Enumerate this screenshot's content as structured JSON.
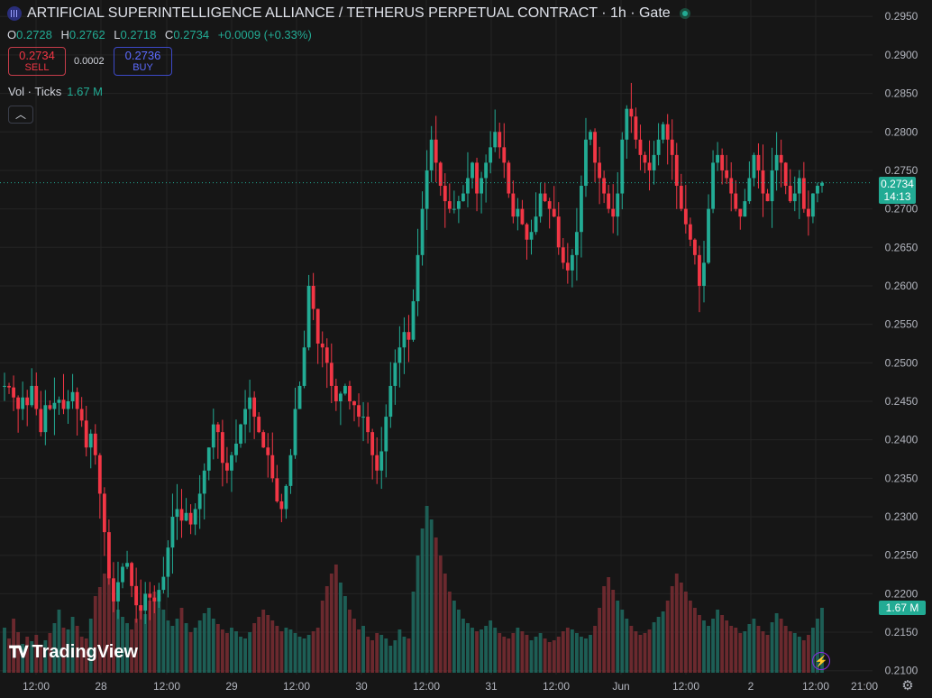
{
  "header": {
    "title": "ARTIFICIAL SUPERINTELLIGENCE ALLIANCE / TETHERUS PERPETUAL CONTRACT · 1h · Gate"
  },
  "ohlc": {
    "o_label": "O",
    "o": "0.2728",
    "h_label": "H",
    "h": "0.2762",
    "l_label": "L",
    "l": "0.2718",
    "c_label": "C",
    "c": "0.2734",
    "change": "+0.0009 (+0.33%)"
  },
  "trade": {
    "sell_price": "0.2734",
    "sell_label": "SELL",
    "spread": "0.0002",
    "buy_price": "0.2736",
    "buy_label": "BUY"
  },
  "volume_legend": {
    "label": "Vol · Ticks",
    "value": "1.67 M"
  },
  "price_tag": {
    "price": "0.2734",
    "countdown": "14:13"
  },
  "volume_tag": "1.67 M",
  "brand": "TradingView",
  "colors": {
    "up": "#22ab94",
    "down": "#f23645",
    "background": "#161616",
    "grid": "#242424",
    "text": "#b2b5be"
  },
  "chart_data": {
    "type": "candlestick",
    "interval": "1h",
    "y_axis": {
      "range": [
        0.2095,
        0.2962
      ],
      "ticks": [
        "0.2950",
        "0.2900",
        "0.2850",
        "0.2800",
        "0.2750",
        "0.2700",
        "0.2650",
        "0.2600",
        "0.2550",
        "0.2500",
        "0.2450",
        "0.2400",
        "0.2350",
        "0.2300",
        "0.2250",
        "0.2200",
        "0.2150",
        "0.2100"
      ]
    },
    "x_axis": {
      "ticks": [
        "12:00",
        "28",
        "12:00",
        "29",
        "12:00",
        "30",
        "12:00",
        "31",
        "12:00",
        "Jun",
        "12:00",
        "2",
        "12:00",
        "21:00"
      ]
    },
    "last_price": 0.2734,
    "series": [
      {
        "name": "Price",
        "key": "start_close",
        "value": 0.247
      },
      {
        "name": "Price",
        "key": "waypoints_close",
        "values": [
          0.247,
          0.2468,
          0.2455,
          0.244,
          0.2455,
          0.2445,
          0.247,
          0.244,
          0.241,
          0.2445,
          0.244,
          0.2448,
          0.2452,
          0.244,
          0.245,
          0.2462,
          0.244,
          0.2425,
          0.239,
          0.2408,
          0.238,
          0.233,
          0.228,
          0.222,
          0.219,
          0.2215,
          0.2235,
          0.224,
          0.221,
          0.2185,
          0.2178,
          0.22,
          0.2195,
          0.219,
          0.2205,
          0.2222,
          0.226,
          0.23,
          0.231,
          0.2295,
          0.2305,
          0.229,
          0.231,
          0.233,
          0.236,
          0.239,
          0.242,
          0.241,
          0.237,
          0.236,
          0.238,
          0.2395,
          0.242,
          0.244,
          0.2455,
          0.243,
          0.241,
          0.239,
          0.238,
          0.235,
          0.232,
          0.231,
          0.234,
          0.238,
          0.244,
          0.247,
          0.252,
          0.26,
          0.257,
          0.2525,
          0.252,
          0.25,
          0.247,
          0.245,
          0.246,
          0.247,
          0.245,
          0.2445,
          0.243,
          0.243,
          0.241,
          0.238,
          0.236,
          0.2385,
          0.243,
          0.247,
          0.25,
          0.252,
          0.254,
          0.253,
          0.258,
          0.264,
          0.27,
          0.275,
          0.279,
          0.276,
          0.273,
          0.271,
          0.27,
          0.27,
          0.271,
          0.272,
          0.274,
          0.276,
          0.272,
          0.274,
          0.276,
          0.278,
          0.28,
          0.278,
          0.276,
          0.272,
          0.269,
          0.27,
          0.268,
          0.266,
          0.267,
          0.269,
          0.272,
          0.271,
          0.27,
          0.269,
          0.265,
          0.263,
          0.262,
          0.264,
          0.267,
          0.273,
          0.279,
          0.28,
          0.276,
          0.274,
          0.272,
          0.27,
          0.269,
          0.272,
          0.279,
          0.283,
          0.282,
          0.279,
          0.277,
          0.276,
          0.275,
          0.277,
          0.279,
          0.281,
          0.279,
          0.277,
          0.273,
          0.27,
          0.268,
          0.266,
          0.264,
          0.26,
          0.263,
          0.27,
          0.276,
          0.277,
          0.275,
          0.274,
          0.272,
          0.27,
          0.269,
          0.271,
          0.274,
          0.277,
          0.275,
          0.272,
          0.271,
          0.275,
          0.277,
          0.276,
          0.273,
          0.271,
          0.272,
          0.274,
          0.27,
          0.269,
          0.272,
          0.273,
          0.2734
        ]
      }
    ],
    "volume_ticks": [
      50,
      38,
      60,
      45,
      32,
      40,
      35,
      42,
      30,
      36,
      44,
      55,
      70,
      50,
      48,
      62,
      52,
      40,
      38,
      60,
      85,
      95,
      110,
      120,
      88,
      70,
      62,
      55,
      48,
      60,
      75,
      65,
      80,
      90,
      85,
      70,
      58,
      52,
      60,
      72,
      55,
      45,
      50,
      58,
      66,
      72,
      60,
      54,
      48,
      44,
      50,
      46,
      40,
      38,
      45,
      55,
      62,
      70,
      64,
      58,
      52,
      46,
      50,
      48,
      44,
      40,
      38,
      42,
      46,
      50,
      80,
      96,
      110,
      120,
      100,
      85,
      70,
      60,
      48,
      52,
      40,
      36,
      44,
      42,
      38,
      30,
      36,
      48,
      40,
      38,
      90,
      130,
      160,
      185,
      170,
      150,
      130,
      110,
      90,
      80,
      70,
      60,
      55,
      50,
      46,
      48,
      52,
      58,
      50,
      44,
      40,
      38,
      44,
      50,
      46,
      42,
      36,
      40,
      44,
      38,
      34,
      36,
      40,
      46,
      50,
      48,
      44,
      40,
      38,
      42,
      52,
      72,
      96,
      106,
      92,
      80,
      70,
      60,
      52,
      46,
      42,
      44,
      48,
      56,
      62,
      68,
      80,
      96,
      110,
      100,
      90,
      80,
      72,
      64,
      58,
      52,
      60,
      70,
      64,
      58,
      52,
      50,
      44,
      46,
      54,
      60,
      52,
      46,
      42,
      56,
      66,
      60,
      52,
      46,
      44,
      40,
      36,
      42,
      50,
      60,
      72
    ]
  }
}
